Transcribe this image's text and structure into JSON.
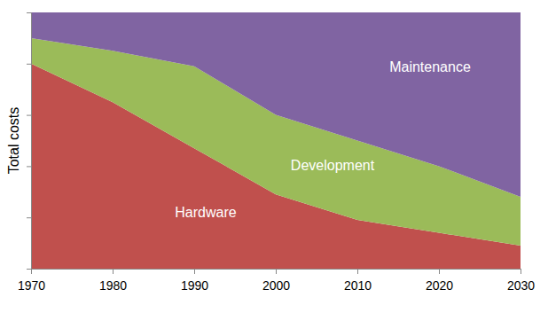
{
  "chart_data": {
    "type": "area",
    "stacked": true,
    "y_label": "Total costs",
    "x": [
      1970,
      1980,
      1990,
      2000,
      2010,
      2020,
      2030
    ],
    "xlim": [
      1970,
      2030
    ],
    "xticks": [
      1970,
      1980,
      1990,
      2000,
      2010,
      2020,
      2030
    ],
    "ylim": [
      0,
      100
    ],
    "yticks": [
      0,
      20,
      40,
      60,
      80,
      100
    ],
    "tick_labels": "x",
    "series": [
      {
        "name": "Hardware",
        "color": "#c0504d",
        "values": [
          80,
          65,
          47,
          29,
          19,
          14,
          9
        ]
      },
      {
        "name": "Development",
        "color": "#9bbb59",
        "values": [
          10,
          20,
          32,
          31,
          31,
          26,
          19
        ]
      },
      {
        "name": "Maintenance",
        "color": "#8064a2",
        "values": [
          10,
          15,
          21,
          40,
          50,
          60,
          72
        ]
      }
    ]
  }
}
